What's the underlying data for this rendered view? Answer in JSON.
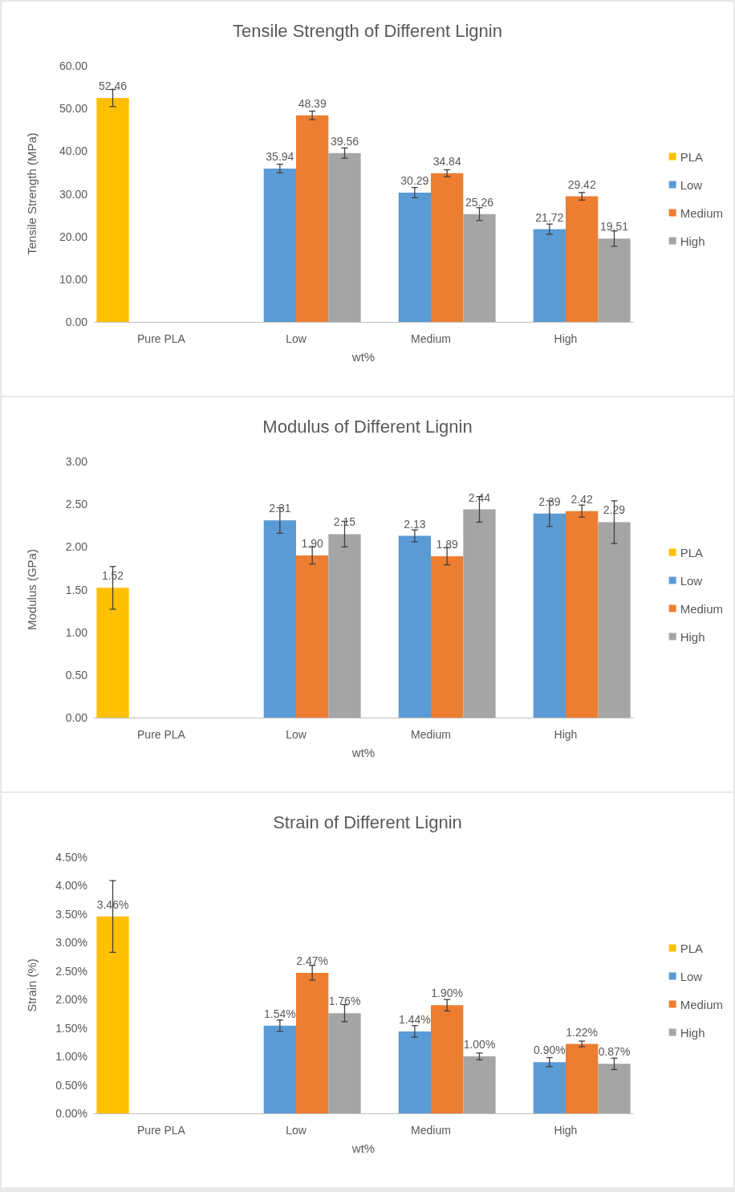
{
  "chart_data": [
    {
      "type": "bar",
      "title": "Tensile Strength of Different Lignin",
      "xlabel": "wt%",
      "ylabel": "Tensile Strength (MPa)",
      "categories": [
        "Pure PLA",
        "Low",
        "Medium",
        "High"
      ],
      "legend": "right",
      "ylim": [
        0,
        60
      ],
      "yticks": [
        {
          "value": 0,
          "label": "0.00"
        },
        {
          "value": 10,
          "label": "10.00"
        },
        {
          "value": 20,
          "label": "20.00"
        },
        {
          "value": 30,
          "label": "30.00"
        },
        {
          "value": 40,
          "label": "40.00"
        },
        {
          "value": 50,
          "label": "50.00"
        },
        {
          "value": 60,
          "label": "60.00"
        }
      ],
      "series": [
        {
          "name": "PLA",
          "color": "#ffc000",
          "values": [
            52.46,
            null,
            null,
            null
          ],
          "errors": [
            2,
            null,
            null,
            null
          ],
          "value_labels": [
            "52.46",
            null,
            null,
            null
          ]
        },
        {
          "name": "Low",
          "color": "#5b9bd5",
          "values": [
            null,
            35.94,
            30.29,
            21.72
          ],
          "errors": [
            null,
            1,
            1.2,
            1.2
          ],
          "value_labels": [
            null,
            "35.94",
            "30.29",
            "21.72"
          ]
        },
        {
          "name": "Medium",
          "color": "#ed7d31",
          "values": [
            null,
            48.39,
            34.84,
            29.42
          ],
          "errors": [
            null,
            1,
            0.8,
            0.9
          ],
          "value_labels": [
            null,
            "48.39",
            "34.84",
            "29.42"
          ]
        },
        {
          "name": "High",
          "color": "#a5a5a5",
          "values": [
            null,
            39.56,
            25.26,
            19.51
          ],
          "errors": [
            null,
            1.2,
            1.5,
            1.8
          ],
          "value_labels": [
            null,
            "39.56",
            "25.26",
            "19.51"
          ]
        }
      ]
    },
    {
      "type": "bar",
      "title": "Modulus of Different Lignin",
      "xlabel": "wt%",
      "ylabel": "Modulus (GPa)",
      "categories": [
        "Pure PLA",
        "Low",
        "Medium",
        "High"
      ],
      "legend": "right",
      "ylim": [
        0,
        3
      ],
      "yticks": [
        {
          "value": 0,
          "label": "0.00"
        },
        {
          "value": 0.5,
          "label": "0.50"
        },
        {
          "value": 1,
          "label": "1.00"
        },
        {
          "value": 1.5,
          "label": "1.50"
        },
        {
          "value": 2,
          "label": "2.00"
        },
        {
          "value": 2.5,
          "label": "2.50"
        },
        {
          "value": 3,
          "label": "3.00"
        }
      ],
      "series": [
        {
          "name": "PLA",
          "color": "#ffc000",
          "values": [
            1.52,
            null,
            null,
            null
          ],
          "errors": [
            0.25,
            null,
            null,
            null
          ],
          "value_labels": [
            "1.52",
            null,
            null,
            null
          ]
        },
        {
          "name": "Low",
          "color": "#5b9bd5",
          "values": [
            null,
            2.31,
            2.13,
            2.39
          ],
          "errors": [
            null,
            0.15,
            0.07,
            0.15
          ],
          "value_labels": [
            null,
            "2.31",
            "2.13",
            "2.39"
          ]
        },
        {
          "name": "Medium",
          "color": "#ed7d31",
          "values": [
            null,
            1.9,
            1.89,
            2.42
          ],
          "errors": [
            null,
            0.1,
            0.1,
            0.07
          ],
          "value_labels": [
            null,
            "1.90",
            "1.89",
            "2.42"
          ]
        },
        {
          "name": "High",
          "color": "#a5a5a5",
          "values": [
            null,
            2.15,
            2.44,
            2.29
          ],
          "errors": [
            null,
            0.15,
            0.15,
            0.25
          ],
          "value_labels": [
            null,
            "2.15",
            "2.44",
            "2.29"
          ]
        }
      ]
    },
    {
      "type": "bar",
      "title": "Strain of Different Lignin",
      "xlabel": "wt%",
      "ylabel": "Strain (%)",
      "categories": [
        "Pure PLA",
        "Low",
        "Medium",
        "High"
      ],
      "legend": "right",
      "ylim": [
        0,
        4.5
      ],
      "yticks": [
        {
          "value": 0,
          "label": "0.00%"
        },
        {
          "value": 0.5,
          "label": "0.50%"
        },
        {
          "value": 1,
          "label": "1.00%"
        },
        {
          "value": 1.5,
          "label": "1.50%"
        },
        {
          "value": 2,
          "label": "2.00%"
        },
        {
          "value": 2.5,
          "label": "2.50%"
        },
        {
          "value": 3,
          "label": "3.00%"
        },
        {
          "value": 3.5,
          "label": "3.50%"
        },
        {
          "value": 4,
          "label": "4.00%"
        },
        {
          "value": 4.5,
          "label": "4.50%"
        }
      ],
      "series": [
        {
          "name": "PLA",
          "color": "#ffc000",
          "values": [
            3.46,
            null,
            null,
            null
          ],
          "errors": [
            0.63,
            null,
            null,
            null
          ],
          "value_labels": [
            "3.46%",
            null,
            null,
            null
          ]
        },
        {
          "name": "Low",
          "color": "#5b9bd5",
          "values": [
            null,
            1.54,
            1.44,
            0.9
          ],
          "errors": [
            null,
            0.1,
            0.1,
            0.08
          ],
          "value_labels": [
            null,
            "1.54%",
            "1.44%",
            "0.90%"
          ]
        },
        {
          "name": "Medium",
          "color": "#ed7d31",
          "values": [
            null,
            2.47,
            1.9,
            1.22
          ],
          "errors": [
            null,
            0.13,
            0.1,
            0.05
          ],
          "value_labels": [
            null,
            "2.47%",
            "1.90%",
            "1.22%"
          ]
        },
        {
          "name": "High",
          "color": "#a5a5a5",
          "values": [
            null,
            1.76,
            1,
            0.87
          ],
          "errors": [
            null,
            0.15,
            0.06,
            0.1
          ],
          "value_labels": [
            null,
            "1.76%",
            "1.00%",
            "0.87%"
          ]
        }
      ]
    }
  ]
}
